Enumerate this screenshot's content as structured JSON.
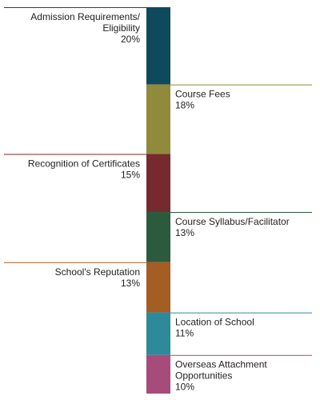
{
  "chart_data": {
    "type": "bar",
    "orientation": "stacked-vertical",
    "categories": [
      "Admission Requirements/ Eligibility",
      "Course Fees",
      "Recognition of Certificates",
      "Course Syllabus/Facilitator",
      "School's Reputation",
      "Location of School",
      "Overseas Attachment Opportunities"
    ],
    "values": [
      20,
      18,
      15,
      13,
      13,
      11,
      10
    ],
    "value_labels": [
      "20%",
      "18%",
      "15%",
      "13%",
      "13%",
      "11%",
      "10%"
    ],
    "label_lines": [
      [
        "Admission Requirements/",
        "Eligibility"
      ],
      [
        "Course Fees"
      ],
      [
        "Recognition of Certificates"
      ],
      [
        "Course Syllabus/Facilitator"
      ],
      [
        "School's Reputation"
      ],
      [
        "Location of School"
      ],
      [
        "Overseas Attachment",
        "Opportunities"
      ]
    ],
    "label_sides": [
      "left",
      "right",
      "left",
      "right",
      "left",
      "right",
      "right"
    ],
    "colors": [
      "#0f4a5c",
      "#8f8a3c",
      "#772a2e",
      "#2c5a3c",
      "#a45d23",
      "#2d8a9a",
      "#a74c7a"
    ],
    "title": "",
    "xlabel": "",
    "ylabel": ""
  }
}
